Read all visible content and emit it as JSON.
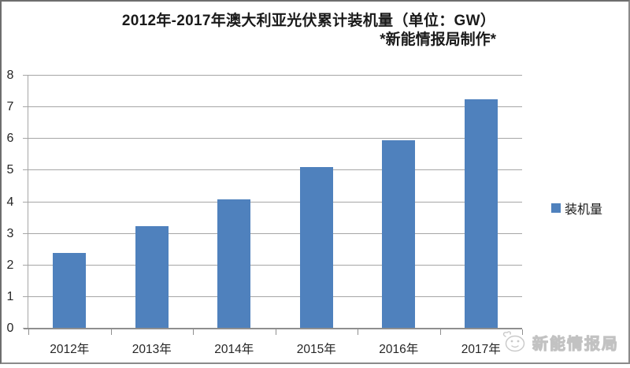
{
  "title": {
    "line1": "2012年-2017年澳大利亚光伏累计装机量（单位：GW）",
    "line2": "*新能情报局制作*"
  },
  "chart_data": {
    "type": "bar",
    "title": "2012年-2017年澳大利亚光伏累计装机量（单位：GW）",
    "subtitle": "*新能情报局制作*",
    "categories": [
      "2012年",
      "2013年",
      "2014年",
      "2015年",
      "2016年",
      "2017年"
    ],
    "series": [
      {
        "name": "装机量",
        "values": [
          2.4,
          3.25,
          4.1,
          5.1,
          5.95,
          7.25
        ]
      }
    ],
    "xlabel": "",
    "ylabel": "",
    "ylim": [
      0,
      8
    ],
    "yticks": [
      0,
      1,
      2,
      3,
      4,
      5,
      6,
      7,
      8
    ],
    "grid": true,
    "legend_position": "right",
    "unit": "GW"
  },
  "legend": {
    "label": "装机量",
    "swatch_color": "#4f81bd"
  },
  "watermark": {
    "text": "新能情报局"
  },
  "colors": {
    "bar": "#4f81bd",
    "grid": "#a6a6a6",
    "axis": "#8f8f8f",
    "title_text": "#1a1a1a",
    "axis_text": "#262626",
    "watermark_text": "#d9d9d9",
    "background": "#ffffff"
  }
}
